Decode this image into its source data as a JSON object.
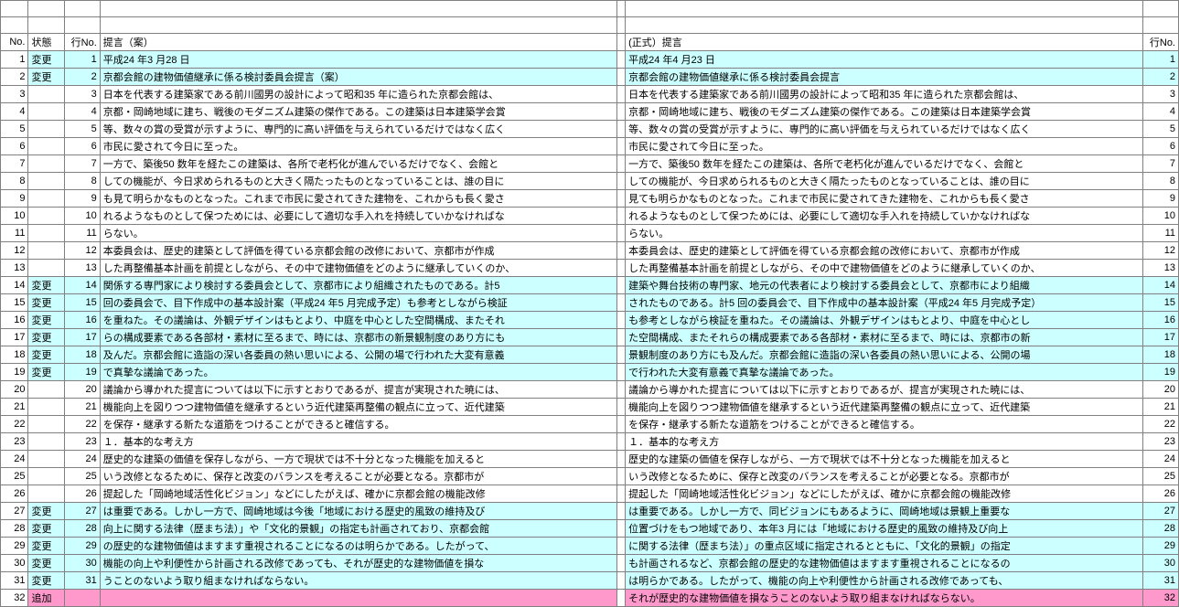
{
  "colors": {
    "change_bg": "#ccffff",
    "add_bg": "#ff99cc",
    "border": "#808080"
  },
  "headers": {
    "no": "No.",
    "status": "状態",
    "lineNo": "行No.",
    "draft": "提言（案）",
    "official": "(正式）提言",
    "lineNoR": "行No."
  },
  "status_labels": {
    "change": "変更",
    "add": "追加"
  },
  "rows": [
    {
      "no": 1,
      "status": "change",
      "lineL": 1,
      "left": "平成24 年3 月28 日",
      "right": "平成24 年4 月23 日",
      "lineR": 1
    },
    {
      "no": 2,
      "status": "change",
      "lineL": 2,
      "left": "京都会館の建物価値継承に係る検討委員会提言（案）",
      "right": "京都会館の建物価値継承に係る検討委員会提言",
      "lineR": 2
    },
    {
      "no": 3,
      "status": "",
      "lineL": 3,
      "left": "日本を代表する建築家である前川國男の設計によって昭和35 年に造られた京都会館は、",
      "right": "日本を代表する建築家である前川國男の設計によって昭和35 年に造られた京都会館は、",
      "lineR": 3
    },
    {
      "no": 4,
      "status": "",
      "lineL": 4,
      "left": "京都・岡崎地域に建ち、戦後のモダニズム建築の傑作である。この建築は日本建築学会賞",
      "right": "京都・岡崎地域に建ち、戦後のモダニズム建築の傑作である。この建築は日本建築学会賞",
      "lineR": 4
    },
    {
      "no": 5,
      "status": "",
      "lineL": 5,
      "left": "等、数々の賞の受賞が示すように、専門的に高い評価を与えられているだけではなく広く",
      "right": "等、数々の賞の受賞が示すように、専門的に高い評価を与えられているだけではなく広く",
      "lineR": 5
    },
    {
      "no": 6,
      "status": "",
      "lineL": 6,
      "left": "市民に愛されて今日に至った。",
      "right": "市民に愛されて今日に至った。",
      "lineR": 6
    },
    {
      "no": 7,
      "status": "",
      "lineL": 7,
      "left": "一方で、築後50 数年を経たこの建築は、各所で老朽化が進んでいるだけでなく、会館と",
      "right": "一方で、築後50 数年を経たこの建築は、各所で老朽化が進んでいるだけでなく、会館と",
      "lineR": 7
    },
    {
      "no": 8,
      "status": "",
      "lineL": 8,
      "left": "しての機能が、今日求められるものと大きく隔たったものとなっていることは、誰の目に",
      "right": "しての機能が、今日求められるものと大きく隔たったものとなっていることは、誰の目に",
      "lineR": 8
    },
    {
      "no": 9,
      "status": "",
      "lineL": 9,
      "left": "も見て明らかなものとなった。これまで市民に愛されてきた建物を、これからも長く愛さ",
      "right": "見ても明らかなものとなった。これまで市民に愛されてきた建物を、これからも長く愛さ",
      "lineR": 9
    },
    {
      "no": 10,
      "status": "",
      "lineL": 10,
      "left": "れるようなものとして保つためには、必要にして適切な手入れを持続していかなければな",
      "right": "れるようなものとして保つためには、必要にして適切な手入れを持続していかなければな",
      "lineR": 10
    },
    {
      "no": 11,
      "status": "",
      "lineL": 11,
      "left": "らない。",
      "right": "らない。",
      "lineR": 11
    },
    {
      "no": 12,
      "status": "",
      "lineL": 12,
      "left": "本委員会は、歴史的建築として評価を得ている京都会館の改修において、京都市が作成",
      "right": "本委員会は、歴史的建築として評価を得ている京都会館の改修において、京都市が作成",
      "lineR": 12
    },
    {
      "no": 13,
      "status": "",
      "lineL": 13,
      "left": "した再整備基本計画を前提としながら、その中で建物価値をどのように継承していくのか、",
      "right": "した再整備基本計画を前提としながら、その中で建物価値をどのように継承していくのか、",
      "lineR": 13
    },
    {
      "no": 14,
      "status": "change",
      "lineL": 14,
      "left": "関係する専門家により検討する委員会として、京都市により組織されたものである。計5",
      "right": "建築や舞台技術の専門家、地元の代表者により検討する委員会として、京都市により組織",
      "lineR": 14
    },
    {
      "no": 15,
      "status": "change",
      "lineL": 15,
      "left": "回の委員会で、目下作成中の基本設計案（平成24 年5 月完成予定）も参考としながら検証",
      "right": "されたものである。計5 回の委員会で、目下作成中の基本設計案（平成24 年5 月完成予定）",
      "lineR": 15
    },
    {
      "no": 16,
      "status": "change",
      "lineL": 16,
      "left": "を重ねた。その議論は、外観デザインはもとより、中庭を中心とした空間構成、またそれ",
      "right": "も参考としながら検証を重ねた。その議論は、外観デザインはもとより、中庭を中心とし",
      "lineR": 16
    },
    {
      "no": 17,
      "status": "change",
      "lineL": 17,
      "left": "らの構成要素である各部材・素材に至るまで、時には、京都市の新景観制度のあり方にも",
      "right": "た空間構成、またそれらの構成要素である各部材・素材に至るまで、時には、京都市の新",
      "lineR": 17
    },
    {
      "no": 18,
      "status": "change",
      "lineL": 18,
      "left": "及んだ。京都会館に造詣の深い各委員の熱い思いによる、公開の場で行われた大変有意義",
      "right": "景観制度のあり方にも及んだ。京都会館に造詣の深い各委員の熱い思いによる、公開の場",
      "lineR": 18
    },
    {
      "no": 19,
      "status": "change",
      "lineL": 19,
      "left": "で真摯な議論であった。",
      "right": "で行われた大変有意義で真摯な議論であった。",
      "lineR": 19
    },
    {
      "no": 20,
      "status": "",
      "lineL": 20,
      "left": "議論から導かれた提言については以下に示すとおりであるが、提言が実現された暁には、",
      "right": "議論から導かれた提言については以下に示すとおりであるが、提言が実現された暁には、",
      "lineR": 20
    },
    {
      "no": 21,
      "status": "",
      "lineL": 21,
      "left": "機能向上を図りつつ建物価値を継承するという近代建築再整備の観点に立って、近代建築",
      "right": "機能向上を図りつつ建物価値を継承するという近代建築再整備の観点に立って、近代建築",
      "lineR": 21
    },
    {
      "no": 22,
      "status": "",
      "lineL": 22,
      "left": "を保存・継承する新たな道筋をつけることができると確信する。",
      "right": "を保存・継承する新たな道筋をつけることができると確信する。",
      "lineR": 22
    },
    {
      "no": 23,
      "status": "",
      "lineL": 23,
      "left": "１．基本的な考え方",
      "right": "１．基本的な考え方",
      "lineR": 23
    },
    {
      "no": 24,
      "status": "",
      "lineL": 24,
      "left": "歴史的な建築の価値を保存しながら、一方で現状では不十分となった機能を加えると",
      "right": "歴史的な建築の価値を保存しながら、一方で現状では不十分となった機能を加えると",
      "lineR": 24
    },
    {
      "no": 25,
      "status": "",
      "lineL": 25,
      "left": "いう改修となるために、保存と改変のバランスを考えることが必要となる。京都市が",
      "right": "いう改修となるために、保存と改変のバランスを考えることが必要となる。京都市が",
      "lineR": 25
    },
    {
      "no": 26,
      "status": "",
      "lineL": 26,
      "left": "提起した「岡崎地域活性化ビジョン」などにしたがえば、確かに京都会館の機能改修",
      "right": "提起した「岡崎地域活性化ビジョン」などにしたがえば、確かに京都会館の機能改修",
      "lineR": 26
    },
    {
      "no": 27,
      "status": "change",
      "lineL": 27,
      "left": "は重要である。しかし一方で、岡崎地域は今後「地域における歴史的風致の維持及び",
      "right": "は重要である。しかし一方で、同ビジョンにもあるように、岡崎地域は景観上重要な",
      "lineR": 27
    },
    {
      "no": 28,
      "status": "change",
      "lineL": 28,
      "left": "向上に関する法律（歴まち法）」や「文化的景観」の指定も計画されており、京都会館",
      "right": "位置づけをもつ地域であり、本年3 月には「地域における歴史的風致の維持及び向上",
      "lineR": 28
    },
    {
      "no": 29,
      "status": "change",
      "lineL": 29,
      "left": "の歴史的な建物価値はますます重視されることになるのは明らかである。したがって、",
      "right": "に関する法律（歴まち法）」の重点区域に指定されるとともに、「文化的景観」の指定",
      "lineR": 29
    },
    {
      "no": 30,
      "status": "change",
      "lineL": 30,
      "left": "機能の向上や利便性から計画される改修であっても、それが歴史的な建物価値を損な",
      "right": "も計画されるなど、京都会館の歴史的な建物価値はますます重視されることになるの",
      "lineR": 30
    },
    {
      "no": 31,
      "status": "change",
      "lineL": 31,
      "left": "うことのないよう取り組まなければならない。",
      "right": "は明らかである。したがって、機能の向上や利便性から計画される改修であっても、",
      "lineR": 31
    },
    {
      "no": 32,
      "status": "add",
      "lineL": "",
      "left": "",
      "right": "それが歴史的な建物価値を損なうことのないよう取り組まなければならない。",
      "lineR": 32
    }
  ]
}
